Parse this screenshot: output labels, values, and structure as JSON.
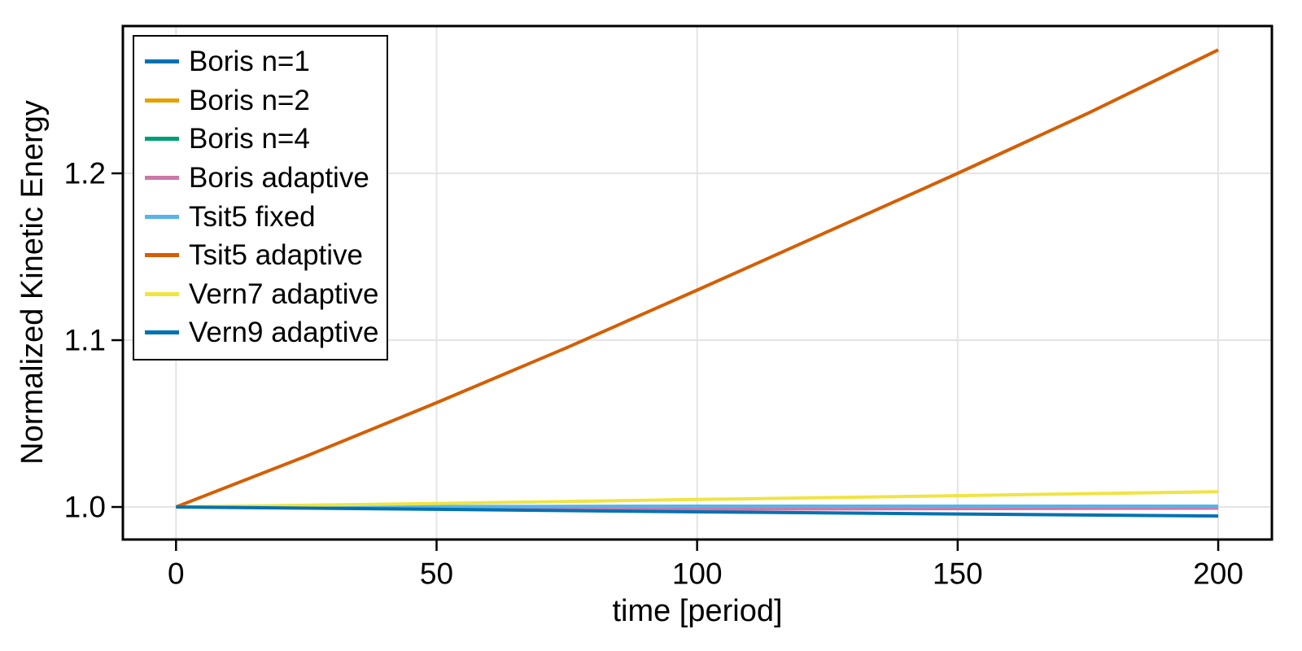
{
  "chart_data": {
    "type": "line",
    "title": "",
    "xlabel": "time [period]",
    "ylabel": "Normalized Kinetic Energy",
    "xlim": [
      -10.2,
      210.3
    ],
    "ylim": [
      0.9805,
      1.2883
    ],
    "grid": true,
    "legend_position": "top-left",
    "x_ticks": {
      "values": [
        0,
        50,
        100,
        150,
        200
      ],
      "labels": [
        "0",
        "50",
        "100",
        "150",
        "200"
      ]
    },
    "y_ticks": {
      "values": [
        1.0,
        1.1,
        1.2
      ],
      "labels": [
        "1.0",
        "1.1",
        "1.2"
      ]
    },
    "colors": {
      "grid": "#e4e4e4",
      "spine": "#000000",
      "background": "#ffffff"
    },
    "series": [
      {
        "name": "Boris n=1",
        "color": "#0072B2",
        "x": [
          0,
          200
        ],
        "y": [
          1.0,
          1.0
        ]
      },
      {
        "name": "Boris n=2",
        "color": "#E69F00",
        "x": [
          0,
          200
        ],
        "y": [
          1.0,
          1.0
        ]
      },
      {
        "name": "Boris n=4",
        "color": "#009E73",
        "x": [
          0,
          200
        ],
        "y": [
          1.0,
          1.0
        ]
      },
      {
        "name": "Boris adaptive",
        "color": "#CC79A7",
        "x": [
          0,
          100,
          200
        ],
        "y": [
          1.0,
          0.99875,
          0.9993
        ]
      },
      {
        "name": "Tsit5 fixed",
        "color": "#56B4E9",
        "x": [
          0,
          100,
          200
        ],
        "y": [
          1.0,
          1.0005,
          1.0005
        ]
      },
      {
        "name": "Tsit5 adaptive",
        "color": "#D55E00",
        "x": [
          0,
          25,
          50,
          75,
          100,
          125,
          150,
          175,
          200
        ],
        "y": [
          1.0,
          1.0305,
          1.0625,
          1.0955,
          1.13,
          1.165,
          1.2,
          1.236,
          1.274
        ]
      },
      {
        "name": "Vern7 adaptive",
        "color": "#F0E442",
        "x": [
          0,
          50,
          100,
          150,
          200
        ],
        "y": [
          1.0,
          1.0021,
          1.0045,
          1.0068,
          1.0092
        ]
      },
      {
        "name": "Vern9 adaptive",
        "color": "#0072B2",
        "x": [
          0,
          50,
          100,
          150,
          200
        ],
        "y": [
          1.0,
          0.9986,
          0.9971,
          0.9958,
          0.9946
        ]
      }
    ]
  }
}
